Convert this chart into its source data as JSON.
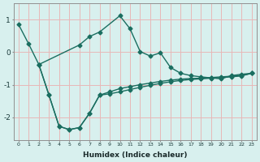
{
  "xlabel": "Humidex (Indice chaleur)",
  "background_color": "#d8f0ee",
  "grid_color": "#e8b8b8",
  "line_color": "#1a6e60",
  "xlim": [
    -0.5,
    23.5
  ],
  "ylim": [
    -2.7,
    1.5
  ],
  "yticks": [
    1,
    0,
    -1,
    -2
  ],
  "xticks": [
    0,
    1,
    2,
    3,
    4,
    5,
    6,
    7,
    8,
    9,
    10,
    11,
    12,
    13,
    14,
    15,
    16,
    17,
    18,
    19,
    20,
    21,
    22,
    23
  ],
  "line1_x": [
    0,
    1,
    2,
    6,
    7,
    8,
    10,
    11,
    12,
    13,
    14,
    15,
    16,
    17,
    18,
    19,
    20,
    21,
    22,
    23
  ],
  "line1_y": [
    0.85,
    0.25,
    -0.38,
    0.22,
    0.48,
    0.62,
    1.12,
    0.72,
    0.02,
    -0.12,
    -0.02,
    -0.47,
    -0.65,
    -0.72,
    -0.76,
    -0.79,
    -0.82,
    -0.72,
    -0.68,
    -0.65
  ],
  "line2_x": [
    2,
    3,
    4,
    5,
    6,
    7,
    8,
    9,
    10,
    11,
    12,
    13,
    14,
    15,
    16,
    17,
    18,
    19,
    20,
    21,
    22,
    23
  ],
  "line2_y": [
    -0.38,
    -1.32,
    -2.28,
    -2.38,
    -2.32,
    -1.88,
    -1.32,
    -1.22,
    -1.12,
    -1.06,
    -1.0,
    -0.95,
    -0.9,
    -0.86,
    -0.83,
    -0.81,
    -0.8,
    -0.78,
    -0.76,
    -0.74,
    -0.72,
    -0.65
  ],
  "line3_x": [
    2,
    3,
    4,
    5,
    6,
    7,
    8,
    9,
    10,
    11,
    12,
    13,
    14,
    15,
    16,
    17,
    18,
    19,
    20,
    21,
    22,
    23
  ],
  "line3_y": [
    -0.38,
    -1.32,
    -2.28,
    -2.38,
    -2.32,
    -1.88,
    -1.32,
    -1.28,
    -1.22,
    -1.15,
    -1.08,
    -1.02,
    -0.96,
    -0.91,
    -0.87,
    -0.84,
    -0.82,
    -0.8,
    -0.78,
    -0.76,
    -0.73,
    -0.65
  ]
}
